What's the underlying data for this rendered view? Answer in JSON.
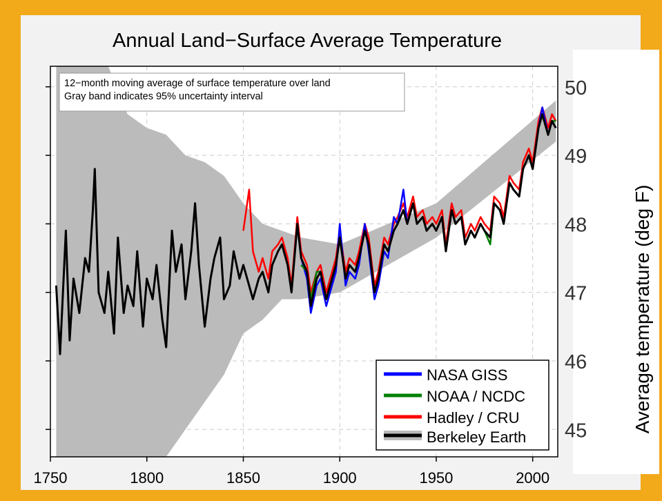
{
  "colors": {
    "frame": "#F2A91A",
    "panel": "#F2F2F2",
    "berkeley": "#000000",
    "band": "#BBBBBB",
    "nasa": "#0000FF",
    "noaa": "#008000",
    "hadley": "#FF0000"
  },
  "chart_data": {
    "type": "line",
    "title": "Annual Land−Surface Average Temperature",
    "annotation": [
      "12−month moving average of surface temperature over land",
      "Gray band indicates 95% uncertainty interval"
    ],
    "xlabel": "",
    "ylabel": "Average temperature (deg F)",
    "xlim": [
      1750,
      2013
    ],
    "ylim": [
      44.6,
      50.3
    ],
    "x_ticks": [
      1750,
      1800,
      1850,
      1900,
      1950,
      2000
    ],
    "y_ticks": [
      45,
      46,
      47,
      48,
      49,
      50
    ],
    "grid": true,
    "legend_position": "bottom-right",
    "legend": [
      "NASA GISS",
      "NOAA / NCDC",
      "Hadley / CRU",
      "Berkeley Earth"
    ],
    "series": [
      {
        "name": "Berkeley Earth",
        "color": "#000000",
        "uncertainty": "95% interval (gray band)",
        "x": [
          1753,
          1755,
          1758,
          1760,
          1762,
          1765,
          1768,
          1770,
          1772,
          1773,
          1775,
          1778,
          1780,
          1783,
          1785,
          1788,
          1790,
          1793,
          1795,
          1798,
          1800,
          1803,
          1805,
          1808,
          1810,
          1813,
          1815,
          1818,
          1820,
          1823,
          1825,
          1827,
          1830,
          1833,
          1835,
          1838,
          1840,
          1843,
          1845,
          1848,
          1850,
          1853,
          1855,
          1858,
          1860,
          1863,
          1865,
          1868,
          1870,
          1873,
          1875,
          1878,
          1880,
          1883,
          1885,
          1888,
          1890,
          1893,
          1895,
          1898,
          1900,
          1903,
          1905,
          1908,
          1910,
          1913,
          1915,
          1918,
          1920,
          1923,
          1925,
          1928,
          1930,
          1933,
          1935,
          1938,
          1940,
          1943,
          1945,
          1948,
          1950,
          1953,
          1955,
          1958,
          1960,
          1963,
          1965,
          1968,
          1970,
          1973,
          1975,
          1978,
          1980,
          1983,
          1985,
          1988,
          1990,
          1993,
          1995,
          1998,
          2000,
          2003,
          2005,
          2008,
          2010,
          2012
        ],
        "y": [
          47.1,
          46.1,
          47.9,
          46.3,
          47.2,
          46.7,
          47.5,
          47.3,
          48.2,
          48.8,
          47.0,
          46.7,
          47.3,
          46.4,
          47.8,
          46.7,
          47.1,
          46.8,
          47.6,
          46.5,
          47.2,
          46.9,
          47.4,
          46.6,
          46.2,
          47.9,
          47.3,
          47.7,
          46.9,
          47.6,
          48.3,
          47.4,
          46.5,
          47.2,
          47.5,
          47.8,
          46.9,
          47.1,
          47.6,
          47.2,
          47.4,
          47.1,
          46.9,
          47.2,
          47.3,
          47.0,
          47.4,
          47.6,
          47.7,
          47.4,
          47.0,
          48.0,
          47.5,
          47.3,
          46.8,
          47.2,
          47.3,
          46.9,
          47.1,
          47.4,
          47.8,
          47.2,
          47.4,
          47.3,
          47.5,
          47.9,
          47.7,
          47.0,
          47.2,
          47.7,
          47.6,
          47.9,
          48.0,
          48.2,
          48.0,
          48.3,
          48.0,
          48.1,
          47.9,
          48.0,
          47.9,
          48.1,
          47.6,
          48.2,
          48.0,
          48.1,
          47.7,
          47.9,
          47.8,
          48.0,
          47.9,
          47.8,
          48.3,
          48.2,
          48.0,
          48.6,
          48.5,
          48.4,
          48.8,
          49.0,
          48.8,
          49.4,
          49.6,
          49.3,
          49.5,
          49.4
        ]
      },
      {
        "name": "Hadley / CRU",
        "color": "#FF0000",
        "x": [
          1850,
          1853,
          1855,
          1858,
          1860,
          1863,
          1865,
          1868,
          1870,
          1873,
          1875,
          1878,
          1880,
          1883,
          1885,
          1888,
          1890,
          1893,
          1895,
          1898,
          1900,
          1903,
          1905,
          1908,
          1910,
          1913,
          1915,
          1918,
          1920,
          1923,
          1925,
          1928,
          1930,
          1933,
          1935,
          1938,
          1940,
          1943,
          1945,
          1948,
          1950,
          1953,
          1955,
          1958,
          1960,
          1963,
          1965,
          1968,
          1970,
          1973,
          1975,
          1978,
          1980,
          1983,
          1985,
          1988,
          1990,
          1993,
          1995,
          1998,
          2000,
          2003,
          2005,
          2008,
          2010,
          2012
        ],
        "y": [
          47.9,
          48.5,
          47.6,
          47.3,
          47.5,
          47.2,
          47.6,
          47.7,
          47.8,
          47.5,
          47.1,
          48.1,
          47.6,
          47.4,
          47.0,
          47.3,
          47.4,
          47.0,
          47.2,
          47.5,
          47.9,
          47.3,
          47.5,
          47.4,
          47.6,
          48.0,
          47.8,
          47.1,
          47.3,
          47.8,
          47.7,
          48.0,
          48.1,
          48.3,
          48.1,
          48.4,
          48.1,
          48.2,
          48.0,
          48.1,
          48.0,
          48.2,
          47.7,
          48.3,
          48.1,
          48.2,
          47.8,
          48.0,
          47.9,
          48.1,
          48.0,
          47.9,
          48.4,
          48.3,
          48.1,
          48.7,
          48.6,
          48.5,
          48.9,
          49.1,
          48.9,
          49.5,
          49.7,
          49.4,
          49.6,
          49.5
        ]
      },
      {
        "name": "NASA GISS",
        "color": "#0000FF",
        "x": [
          1880,
          1883,
          1885,
          1888,
          1890,
          1893,
          1895,
          1898,
          1900,
          1903,
          1905,
          1908,
          1910,
          1913,
          1915,
          1918,
          1920,
          1923,
          1925,
          1928,
          1930,
          1933,
          1935,
          1938,
          1940,
          1943,
          1945,
          1948,
          1950,
          1953,
          1955,
          1958,
          1960,
          1963,
          1965,
          1968,
          1970,
          1973,
          1975,
          1978,
          1980,
          1983,
          1985,
          1988,
          1990,
          1993,
          1995,
          1998,
          2000,
          2003,
          2005,
          2008,
          2010,
          2012
        ],
        "y": [
          47.5,
          47.2,
          46.7,
          47.1,
          47.2,
          46.8,
          47.0,
          47.3,
          48.0,
          47.1,
          47.3,
          47.2,
          47.4,
          48.0,
          47.6,
          46.9,
          47.1,
          47.6,
          47.5,
          48.1,
          48.0,
          48.5,
          48.0,
          48.3,
          48.0,
          48.1,
          47.9,
          48.0,
          47.9,
          48.1,
          47.6,
          48.2,
          48.0,
          48.1,
          47.7,
          47.9,
          47.8,
          48.0,
          47.9,
          47.8,
          48.3,
          48.2,
          48.0,
          48.6,
          48.5,
          48.4,
          48.8,
          49.0,
          48.8,
          49.4,
          49.7,
          49.3,
          49.5,
          49.4
        ]
      },
      {
        "name": "NOAA / NCDC",
        "color": "#008000",
        "x": [
          1880,
          1883,
          1885,
          1888,
          1890,
          1893,
          1895,
          1898,
          1900,
          1903,
          1905,
          1908,
          1910,
          1913,
          1915,
          1918,
          1920,
          1923,
          1925,
          1928,
          1930,
          1933,
          1935,
          1938,
          1940,
          1943,
          1945,
          1948,
          1950,
          1953,
          1955,
          1958,
          1960,
          1963,
          1965,
          1968,
          1970,
          1973,
          1975,
          1978,
          1980,
          1983,
          1985,
          1988,
          1990,
          1993,
          1995,
          1998,
          2000,
          2003,
          2005,
          2008,
          2010,
          2012
        ],
        "y": [
          47.4,
          47.3,
          46.9,
          47.3,
          47.3,
          46.9,
          47.1,
          47.4,
          47.8,
          47.2,
          47.4,
          47.3,
          47.5,
          47.9,
          47.7,
          47.0,
          47.2,
          47.7,
          47.6,
          47.9,
          48.0,
          48.2,
          48.0,
          48.3,
          48.0,
          48.1,
          47.9,
          48.0,
          47.9,
          48.1,
          47.6,
          48.2,
          48.0,
          48.1,
          47.7,
          47.9,
          47.8,
          48.0,
          47.9,
          47.7,
          48.3,
          48.2,
          48.0,
          48.6,
          48.5,
          48.4,
          48.8,
          49.0,
          48.8,
          49.4,
          49.6,
          49.3,
          49.5,
          49.5
        ]
      }
    ],
    "uncertainty_band": {
      "x": [
        1753,
        1760,
        1770,
        1780,
        1790,
        1800,
        1810,
        1820,
        1830,
        1840,
        1850,
        1860,
        1870,
        1880,
        1900,
        1950,
        2012
      ],
      "lower": [
        44.6,
        44.6,
        44.6,
        44.6,
        44.6,
        44.6,
        44.6,
        45.0,
        45.4,
        45.8,
        46.4,
        46.6,
        46.9,
        46.9,
        47.0,
        47.8,
        49.2
      ],
      "upper": [
        50.3,
        50.3,
        50.3,
        50.3,
        49.6,
        49.4,
        49.3,
        49.0,
        48.9,
        48.7,
        48.3,
        48.0,
        47.9,
        47.8,
        47.7,
        48.3,
        49.8
      ]
    }
  }
}
